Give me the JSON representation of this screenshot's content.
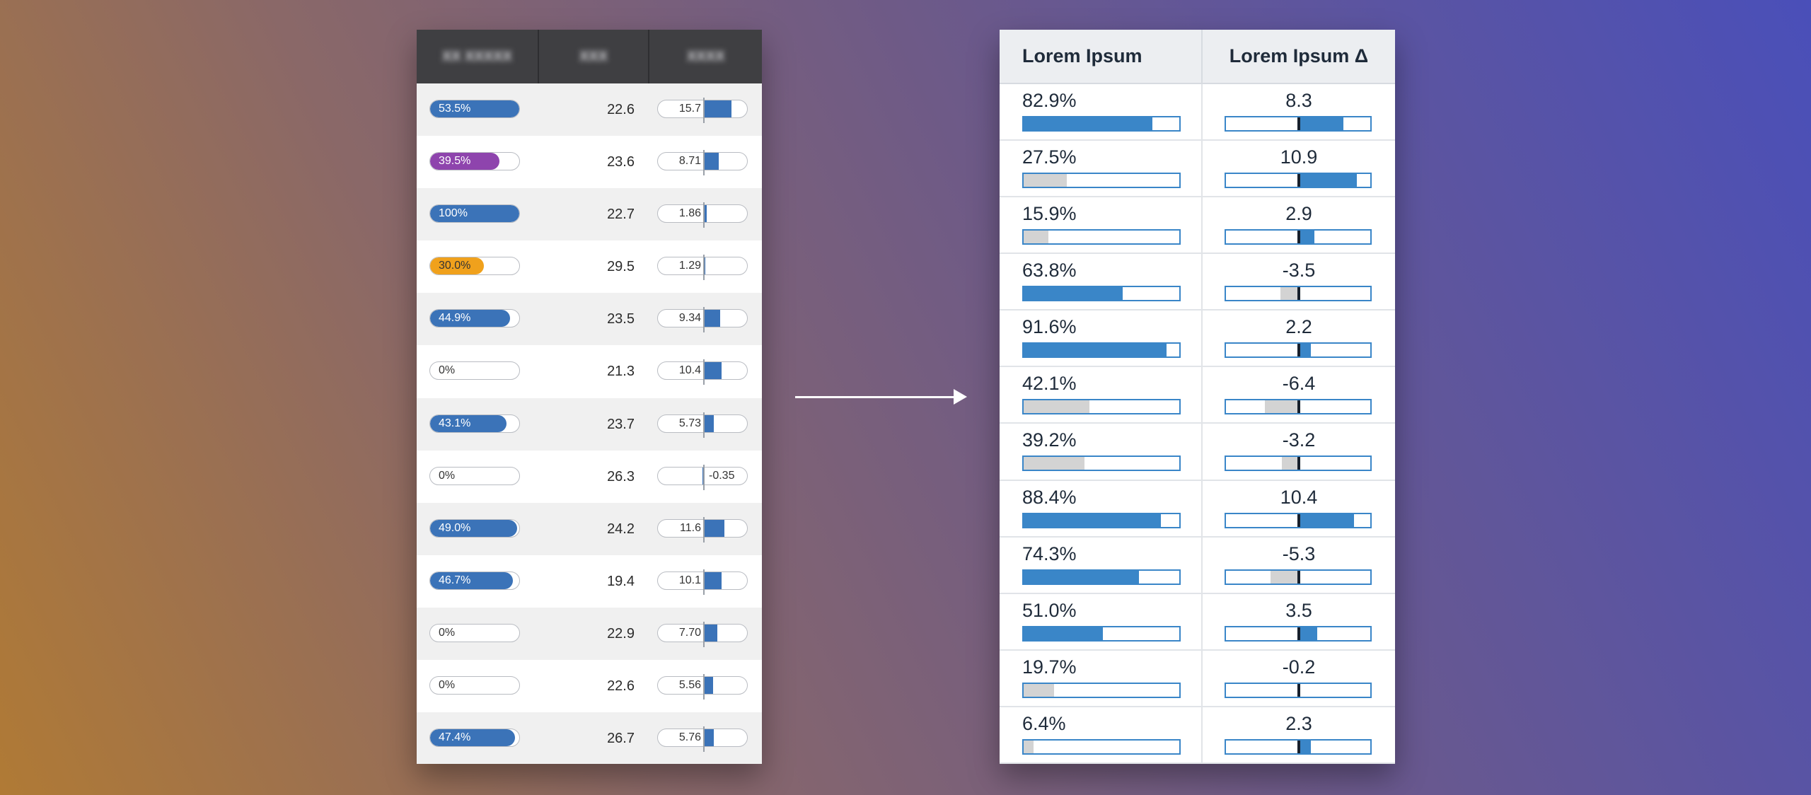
{
  "left_table": {
    "headers": [
      "XX XXXXX",
      "XXX",
      "XXXX"
    ],
    "rows": [
      {
        "pill_label": "53.5%",
        "pill_value": 1.0,
        "pill_color": "#3b73b8",
        "pill_dark": false,
        "mid": "22.6",
        "bar_label": "15.7",
        "bar_value": 15.7
      },
      {
        "pill_label": "39.5%",
        "pill_value": 0.78,
        "pill_color": "#8e44ad",
        "pill_dark": false,
        "mid": "23.6",
        "bar_label": "8.71",
        "bar_value": 8.71
      },
      {
        "pill_label": "100%",
        "pill_value": 1.0,
        "pill_color": "#3b73b8",
        "pill_dark": false,
        "mid": "22.7",
        "bar_label": "1.86",
        "bar_value": 1.86
      },
      {
        "pill_label": "30.0%",
        "pill_value": 0.6,
        "pill_color": "#f0a11c",
        "pill_dark": true,
        "mid": "29.5",
        "bar_label": "1.29",
        "bar_value": 1.29
      },
      {
        "pill_label": "44.9%",
        "pill_value": 0.9,
        "pill_color": "#3b73b8",
        "pill_dark": false,
        "mid": "23.5",
        "bar_label": "9.34",
        "bar_value": 9.34
      },
      {
        "pill_label": "0%",
        "pill_value": 0.0,
        "pill_color": "#3b73b8",
        "pill_dark": true,
        "mid": "21.3",
        "bar_label": "10.4",
        "bar_value": 10.4
      },
      {
        "pill_label": "43.1%",
        "pill_value": 0.86,
        "pill_color": "#3b73b8",
        "pill_dark": false,
        "mid": "23.7",
        "bar_label": "5.73",
        "bar_value": 5.73
      },
      {
        "pill_label": "0%",
        "pill_value": 0.0,
        "pill_color": "#3b73b8",
        "pill_dark": true,
        "mid": "26.3",
        "bar_label": "-0.35",
        "bar_value": -0.35
      },
      {
        "pill_label": "49.0%",
        "pill_value": 0.98,
        "pill_color": "#3b73b8",
        "pill_dark": false,
        "mid": "24.2",
        "bar_label": "11.6",
        "bar_value": 11.6
      },
      {
        "pill_label": "46.7%",
        "pill_value": 0.93,
        "pill_color": "#3b73b8",
        "pill_dark": false,
        "mid": "19.4",
        "bar_label": "10.1",
        "bar_value": 10.1
      },
      {
        "pill_label": "0%",
        "pill_value": 0.0,
        "pill_color": "#3b73b8",
        "pill_dark": true,
        "mid": "22.9",
        "bar_label": "7.70",
        "bar_value": 7.7
      },
      {
        "pill_label": "0%",
        "pill_value": 0.0,
        "pill_color": "#3b73b8",
        "pill_dark": true,
        "mid": "22.6",
        "bar_label": "5.56",
        "bar_value": 5.56
      },
      {
        "pill_label": "47.4%",
        "pill_value": 0.95,
        "pill_color": "#3b73b8",
        "pill_dark": false,
        "mid": "26.7",
        "bar_label": "5.76",
        "bar_value": 5.76
      }
    ]
  },
  "right_table": {
    "header_col1": "Lorem Ipsum",
    "header_col2": "Lorem Ipsum Δ",
    "colors": {
      "positive": "#3a86c8",
      "negative": "#d3d3d3",
      "zero_line": "#17202c",
      "border": "#3a86c8"
    },
    "rows": [
      {
        "pct": "82.9%",
        "pct_value": 0.829,
        "pct_highlight": true,
        "delta": "8.3",
        "delta_value": 8.3
      },
      {
        "pct": "27.5%",
        "pct_value": 0.275,
        "pct_highlight": false,
        "delta": "10.9",
        "delta_value": 10.9
      },
      {
        "pct": "15.9%",
        "pct_value": 0.159,
        "pct_highlight": false,
        "delta": "2.9",
        "delta_value": 2.9
      },
      {
        "pct": "63.8%",
        "pct_value": 0.638,
        "pct_highlight": true,
        "delta": "-3.5",
        "delta_value": -3.5
      },
      {
        "pct": "91.6%",
        "pct_value": 0.916,
        "pct_highlight": true,
        "delta": "2.2",
        "delta_value": 2.2
      },
      {
        "pct": "42.1%",
        "pct_value": 0.421,
        "pct_highlight": false,
        "delta": "-6.4",
        "delta_value": -6.4
      },
      {
        "pct": "39.2%",
        "pct_value": 0.392,
        "pct_highlight": false,
        "delta": "-3.2",
        "delta_value": -3.2
      },
      {
        "pct": "88.4%",
        "pct_value": 0.884,
        "pct_highlight": true,
        "delta": "10.4",
        "delta_value": 10.4
      },
      {
        "pct": "74.3%",
        "pct_value": 0.743,
        "pct_highlight": true,
        "delta": "-5.3",
        "delta_value": -5.3
      },
      {
        "pct": "51.0%",
        "pct_value": 0.51,
        "pct_highlight": true,
        "delta": "3.5",
        "delta_value": 3.5
      },
      {
        "pct": "19.7%",
        "pct_value": 0.197,
        "pct_highlight": false,
        "delta": "-0.2",
        "delta_value": -0.2
      },
      {
        "pct": "6.4%",
        "pct_value": 0.064,
        "pct_highlight": false,
        "delta": "2.3",
        "delta_value": 2.3
      }
    ]
  }
}
